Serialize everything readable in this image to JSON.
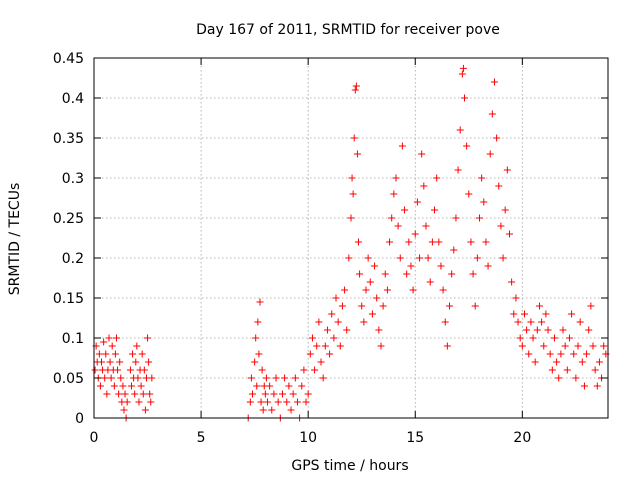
{
  "chart_data": {
    "type": "scatter",
    "title": "Day 167 of 2011, SRMTID for receiver pove",
    "xlabel": "GPS time / hours",
    "ylabel": "SRMTID / TECUs",
    "xlim": [
      0,
      24
    ],
    "ylim": [
      0,
      0.45
    ],
    "xticks": [
      0,
      5,
      10,
      15,
      20
    ],
    "xtick_labels": [
      "0",
      "5",
      "10",
      "15",
      "20"
    ],
    "yticks": [
      0,
      0.05,
      0.1,
      0.15,
      0.2,
      0.25,
      0.3,
      0.35,
      0.4,
      0.45
    ],
    "ytick_labels": [
      "0",
      "0.05",
      "0.1",
      "0.15",
      "0.2",
      "0.25",
      "0.3",
      "0.35",
      "0.4",
      "0.45"
    ],
    "grid": true,
    "marker": "+",
    "marker_color": "#ff0000",
    "series": [
      {
        "name": "SRMTID",
        "points": [
          [
            0.05,
            0.06
          ],
          [
            0.1,
            0.09
          ],
          [
            0.15,
            0.07
          ],
          [
            0.2,
            0.05
          ],
          [
            0.25,
            0.08
          ],
          [
            0.3,
            0.04
          ],
          [
            0.35,
            0.07
          ],
          [
            0.4,
            0.06
          ],
          [
            0.45,
            0.095
          ],
          [
            0.5,
            0.05
          ],
          [
            0.55,
            0.08
          ],
          [
            0.6,
            0.03
          ],
          [
            0.65,
            0.06
          ],
          [
            0.7,
            0.1
          ],
          [
            0.75,
            0.07
          ],
          [
            0.8,
            0.05
          ],
          [
            0.85,
            0.09
          ],
          [
            0.9,
            0.06
          ],
          [
            0.95,
            0.04
          ],
          [
            1.0,
            0.08
          ],
          [
            1.05,
            0.1
          ],
          [
            1.1,
            0.06
          ],
          [
            1.15,
            0.03
          ],
          [
            1.2,
            0.07
          ],
          [
            1.25,
            0.05
          ],
          [
            1.3,
            0.02
          ],
          [
            1.35,
            0.04
          ],
          [
            1.4,
            0.01
          ],
          [
            1.45,
            0.03
          ],
          [
            1.5,
            0.0
          ],
          [
            1.55,
            0.02
          ],
          [
            1.7,
            0.06
          ],
          [
            1.75,
            0.04
          ],
          [
            1.8,
            0.08
          ],
          [
            1.85,
            0.05
          ],
          [
            1.9,
            0.03
          ],
          [
            1.95,
            0.07
          ],
          [
            2.0,
            0.09
          ],
          [
            2.05,
            0.05
          ],
          [
            2.1,
            0.02
          ],
          [
            2.15,
            0.06
          ],
          [
            2.2,
            0.04
          ],
          [
            2.25,
            0.08
          ],
          [
            2.3,
            0.03
          ],
          [
            2.35,
            0.06
          ],
          [
            2.4,
            0.01
          ],
          [
            2.45,
            0.05
          ],
          [
            2.5,
            0.1
          ],
          [
            2.55,
            0.07
          ],
          [
            2.6,
            0.03
          ],
          [
            2.65,
            0.02
          ],
          [
            2.7,
            0.05
          ],
          [
            7.2,
            0.0
          ],
          [
            7.3,
            0.02
          ],
          [
            7.35,
            0.05
          ],
          [
            7.4,
            0.03
          ],
          [
            7.5,
            0.07
          ],
          [
            7.55,
            0.1
          ],
          [
            7.6,
            0.04
          ],
          [
            7.65,
            0.12
          ],
          [
            7.7,
            0.08
          ],
          [
            7.75,
            0.145
          ],
          [
            7.8,
            0.02
          ],
          [
            7.85,
            0.06
          ],
          [
            7.9,
            0.01
          ],
          [
            7.95,
            0.04
          ],
          [
            8.0,
            0.03
          ],
          [
            8.05,
            0.05
          ],
          [
            8.1,
            0.02
          ],
          [
            8.2,
            0.04
          ],
          [
            8.3,
            0.01
          ],
          [
            8.4,
            0.03
          ],
          [
            8.5,
            0.05
          ],
          [
            8.6,
            0.02
          ],
          [
            8.7,
            0.0
          ],
          [
            8.8,
            0.03
          ],
          [
            8.9,
            0.05
          ],
          [
            9.0,
            0.02
          ],
          [
            9.1,
            0.04
          ],
          [
            9.2,
            0.01
          ],
          [
            9.3,
            0.03
          ],
          [
            9.4,
            0.05
          ],
          [
            9.5,
            0.02
          ],
          [
            9.6,
            0.0
          ],
          [
            9.7,
            0.04
          ],
          [
            9.8,
            0.06
          ],
          [
            9.9,
            0.02
          ],
          [
            10.0,
            0.03
          ],
          [
            10.1,
            0.08
          ],
          [
            10.2,
            0.1
          ],
          [
            10.3,
            0.06
          ],
          [
            10.4,
            0.09
          ],
          [
            10.5,
            0.12
          ],
          [
            10.6,
            0.07
          ],
          [
            10.7,
            0.05
          ],
          [
            10.8,
            0.09
          ],
          [
            10.9,
            0.11
          ],
          [
            11.0,
            0.08
          ],
          [
            11.1,
            0.13
          ],
          [
            11.2,
            0.1
          ],
          [
            11.3,
            0.15
          ],
          [
            11.4,
            0.12
          ],
          [
            11.5,
            0.09
          ],
          [
            11.6,
            0.14
          ],
          [
            11.7,
            0.16
          ],
          [
            11.8,
            0.11
          ],
          [
            11.9,
            0.2
          ],
          [
            12.0,
            0.25
          ],
          [
            12.05,
            0.3
          ],
          [
            12.1,
            0.28
          ],
          [
            12.15,
            0.35
          ],
          [
            12.2,
            0.41
          ],
          [
            12.25,
            0.415
          ],
          [
            12.3,
            0.33
          ],
          [
            12.35,
            0.22
          ],
          [
            12.4,
            0.18
          ],
          [
            12.5,
            0.14
          ],
          [
            12.6,
            0.12
          ],
          [
            12.7,
            0.16
          ],
          [
            12.8,
            0.2
          ],
          [
            12.9,
            0.17
          ],
          [
            13.0,
            0.13
          ],
          [
            13.1,
            0.19
          ],
          [
            13.2,
            0.15
          ],
          [
            13.3,
            0.11
          ],
          [
            13.4,
            0.09
          ],
          [
            13.5,
            0.14
          ],
          [
            13.6,
            0.18
          ],
          [
            13.7,
            0.16
          ],
          [
            13.8,
            0.22
          ],
          [
            13.9,
            0.25
          ],
          [
            14.0,
            0.28
          ],
          [
            14.1,
            0.3
          ],
          [
            14.2,
            0.24
          ],
          [
            14.3,
            0.2
          ],
          [
            14.4,
            0.34
          ],
          [
            14.5,
            0.26
          ],
          [
            14.6,
            0.18
          ],
          [
            14.7,
            0.22
          ],
          [
            14.8,
            0.19
          ],
          [
            14.9,
            0.16
          ],
          [
            15.0,
            0.23
          ],
          [
            15.1,
            0.27
          ],
          [
            15.2,
            0.2
          ],
          [
            15.3,
            0.33
          ],
          [
            15.4,
            0.29
          ],
          [
            15.5,
            0.24
          ],
          [
            15.6,
            0.2
          ],
          [
            15.7,
            0.17
          ],
          [
            15.8,
            0.22
          ],
          [
            15.9,
            0.26
          ],
          [
            16.0,
            0.3
          ],
          [
            16.1,
            0.22
          ],
          [
            16.2,
            0.19
          ],
          [
            16.3,
            0.16
          ],
          [
            16.4,
            0.12
          ],
          [
            16.5,
            0.09
          ],
          [
            16.6,
            0.14
          ],
          [
            16.7,
            0.18
          ],
          [
            16.8,
            0.21
          ],
          [
            16.9,
            0.25
          ],
          [
            17.0,
            0.31
          ],
          [
            17.1,
            0.36
          ],
          [
            17.2,
            0.43
          ],
          [
            17.25,
            0.437
          ],
          [
            17.3,
            0.4
          ],
          [
            17.4,
            0.34
          ],
          [
            17.5,
            0.28
          ],
          [
            17.6,
            0.22
          ],
          [
            17.7,
            0.18
          ],
          [
            17.8,
            0.14
          ],
          [
            17.9,
            0.2
          ],
          [
            18.0,
            0.25
          ],
          [
            18.1,
            0.3
          ],
          [
            18.2,
            0.27
          ],
          [
            18.3,
            0.22
          ],
          [
            18.4,
            0.19
          ],
          [
            18.5,
            0.33
          ],
          [
            18.6,
            0.38
          ],
          [
            18.7,
            0.42
          ],
          [
            18.8,
            0.35
          ],
          [
            18.9,
            0.29
          ],
          [
            19.0,
            0.24
          ],
          [
            19.1,
            0.2
          ],
          [
            19.2,
            0.26
          ],
          [
            19.3,
            0.31
          ],
          [
            19.4,
            0.23
          ],
          [
            19.5,
            0.17
          ],
          [
            19.6,
            0.13
          ],
          [
            19.7,
            0.15
          ],
          [
            19.8,
            0.12
          ],
          [
            19.9,
            0.1
          ],
          [
            20.0,
            0.09
          ],
          [
            20.1,
            0.13
          ],
          [
            20.2,
            0.11
          ],
          [
            20.3,
            0.08
          ],
          [
            20.4,
            0.12
          ],
          [
            20.5,
            0.1
          ],
          [
            20.6,
            0.07
          ],
          [
            20.7,
            0.11
          ],
          [
            20.8,
            0.14
          ],
          [
            20.9,
            0.12
          ],
          [
            21.0,
            0.09
          ],
          [
            21.1,
            0.13
          ],
          [
            21.2,
            0.11
          ],
          [
            21.3,
            0.08
          ],
          [
            21.4,
            0.06
          ],
          [
            21.5,
            0.1
          ],
          [
            21.6,
            0.07
          ],
          [
            21.7,
            0.05
          ],
          [
            21.8,
            0.08
          ],
          [
            21.9,
            0.11
          ],
          [
            22.0,
            0.09
          ],
          [
            22.1,
            0.06
          ],
          [
            22.2,
            0.1
          ],
          [
            22.3,
            0.13
          ],
          [
            22.4,
            0.08
          ],
          [
            22.5,
            0.05
          ],
          [
            22.6,
            0.09
          ],
          [
            22.7,
            0.12
          ],
          [
            22.8,
            0.07
          ],
          [
            22.9,
            0.04
          ],
          [
            23.0,
            0.08
          ],
          [
            23.1,
            0.11
          ],
          [
            23.2,
            0.14
          ],
          [
            23.3,
            0.09
          ],
          [
            23.4,
            0.06
          ],
          [
            23.5,
            0.04
          ],
          [
            23.6,
            0.07
          ],
          [
            23.7,
            0.05
          ],
          [
            23.8,
            0.09
          ],
          [
            23.9,
            0.08
          ]
        ]
      }
    ]
  }
}
